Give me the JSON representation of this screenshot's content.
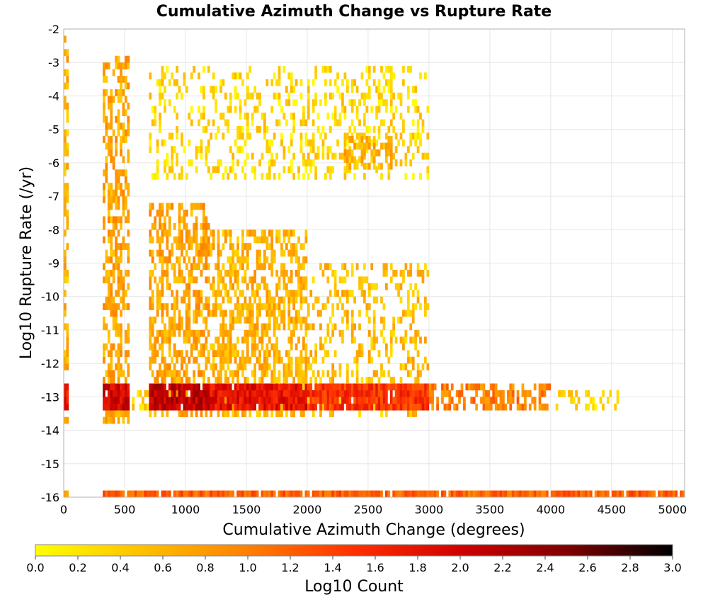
{
  "chart_data": {
    "type": "heatmap",
    "title": "Cumulative Azimuth Change vs Rupture Rate",
    "xlabel": "Cumulative Azimuth Change (degrees)",
    "ylabel": "Log10 Rupture Rate (/yr)",
    "xlim": [
      0,
      5100
    ],
    "ylim": [
      -16,
      -2
    ],
    "x_ticks": [
      0,
      500,
      1000,
      1500,
      2000,
      2500,
      3000,
      3500,
      4000,
      4500,
      5000
    ],
    "y_ticks": [
      -2,
      -3,
      -4,
      -5,
      -6,
      -7,
      -8,
      -9,
      -10,
      -11,
      -12,
      -13,
      -14,
      -15,
      -16
    ],
    "grid": true,
    "colorbar": {
      "label": "Log10 Count",
      "range": [
        0.0,
        3.0
      ],
      "ticks": [
        "0.0",
        "0.2",
        "0.4",
        "0.6",
        "0.8",
        "1.0",
        "1.2",
        "1.4",
        "1.6",
        "1.8",
        "2.0",
        "2.2",
        "2.4",
        "2.6",
        "2.8",
        "3.0"
      ],
      "colors": [
        "#ffff00",
        "#ffc000",
        "#ff8000",
        "#ff3000",
        "#d00000",
        "#800000",
        "#000000"
      ]
    },
    "cell_size": {
      "x_degrees": 20,
      "y_log10": 0.2
    },
    "density_regions": [
      {
        "x": [
          0,
          40
        ],
        "y": [
          -14,
          -2.2
        ],
        "value": 0.6
      },
      {
        "x": [
          0,
          40
        ],
        "y": [
          -13.4,
          -12.6
        ],
        "value": 1.8
      },
      {
        "x": [
          320,
          540
        ],
        "y": [
          -13.8,
          -2.8
        ],
        "value": 0.7
      },
      {
        "x": [
          320,
          540
        ],
        "y": [
          -13.4,
          -12.6
        ],
        "value": 2.0
      },
      {
        "x": [
          540,
          700
        ],
        "y": [
          -13.4,
          -12.8
        ],
        "value": 0.4
      },
      {
        "x": [
          700,
          1200
        ],
        "y": [
          -13.6,
          -7.2
        ],
        "value": 0.7
      },
      {
        "x": [
          700,
          1200
        ],
        "y": [
          -13.4,
          -12.6
        ],
        "value": 2.1
      },
      {
        "x": [
          1200,
          2000
        ],
        "y": [
          -13.6,
          -8.0
        ],
        "value": 0.6
      },
      {
        "x": [
          1200,
          2000
        ],
        "y": [
          -13.4,
          -12.6
        ],
        "value": 1.8
      },
      {
        "x": [
          2000,
          3000
        ],
        "y": [
          -13.6,
          -9.0
        ],
        "value": 0.5
      },
      {
        "x": [
          2000,
          3000
        ],
        "y": [
          -13.4,
          -12.6
        ],
        "value": 1.5
      },
      {
        "x": [
          3000,
          4000
        ],
        "y": [
          -13.4,
          -12.6
        ],
        "value": 1.0
      },
      {
        "x": [
          4000,
          4550
        ],
        "y": [
          -13.4,
          -12.8
        ],
        "value": 0.3
      },
      {
        "x": [
          700,
          3000
        ],
        "y": [
          -6.5,
          -3.2
        ],
        "value": 0.3
      },
      {
        "x": [
          2300,
          2700
        ],
        "y": [
          -6.2,
          -5.2
        ],
        "value": 0.6
      },
      {
        "x": [
          0,
          40
        ],
        "y": [
          -16,
          -15.8
        ],
        "value": 0.6
      },
      {
        "x": [
          320,
          5100
        ],
        "y": [
          -16,
          -15.8
        ],
        "value": 1.2
      }
    ]
  }
}
